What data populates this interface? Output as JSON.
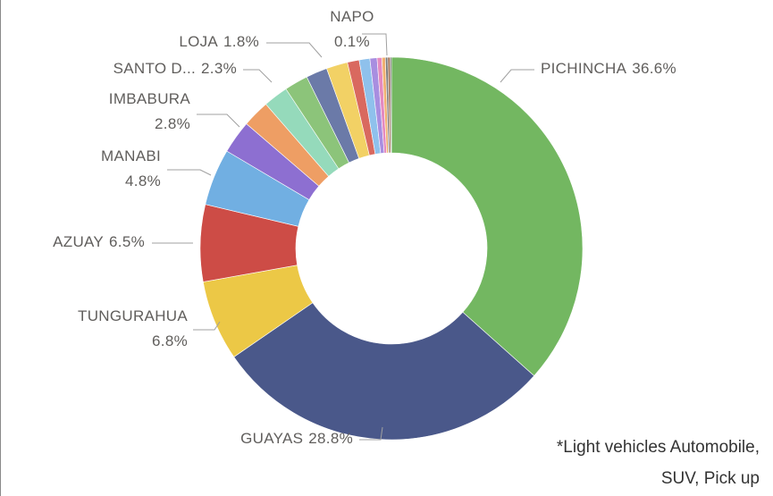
{
  "chart_data": {
    "type": "donut",
    "categories": [
      "PICHINCHA",
      "GUAYAS",
      "TUNGURAHUA",
      "AZUAY",
      "MANABI",
      "IMBABURA",
      "SANTO D...",
      null,
      null,
      "LOJA",
      null,
      null,
      null,
      null,
      null,
      null,
      null,
      null,
      "NAPO"
    ],
    "values": [
      36.6,
      28.8,
      6.8,
      6.5,
      4.8,
      2.8,
      2.3,
      2.1,
      2.0,
      1.8,
      1.8,
      1.0,
      0.9,
      0.6,
      0.4,
      0.3,
      0.2,
      0.2,
      0.1
    ],
    "value_labels": [
      "36.6%",
      "28.8%",
      "6.8%",
      "6.5%",
      "4.8%",
      "2.8%",
      "2.3%",
      null,
      null,
      "1.8%",
      null,
      null,
      null,
      null,
      null,
      null,
      null,
      null,
      "0.1%"
    ],
    "colors": [
      "#73b761",
      "#4a588a",
      "#ecc846",
      "#cd4c46",
      "#71afe2",
      "#8d6fd1",
      "#ee9e64",
      "#95dabb",
      "#8cc47a",
      "#6b7aa8",
      "#f2d165",
      "#d9695f",
      "#8fc1ec",
      "#a88ee0",
      "#e48ac0",
      "#f0b070",
      "#7a7a7a",
      "#9c6b4e",
      "#5a5a5a"
    ],
    "note": [
      "*Light vehicles Automobile,",
      "SUV, Pick up"
    ]
  }
}
